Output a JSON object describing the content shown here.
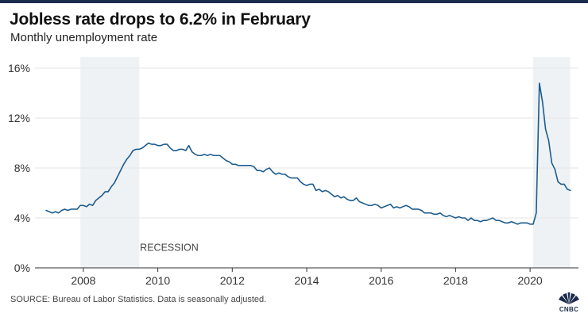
{
  "header": {
    "title": "Jobless rate drops to 6.2% in February",
    "subtitle": "Monthly unemployment rate"
  },
  "footer": {
    "source": "SOURCE: Bureau of Labor Statistics. Data is seasonally adjusted.",
    "logo_text": "CNBC"
  },
  "colors": {
    "line": "#1d5c8e",
    "recession_band": "#eef2f4",
    "grid": "#e6e6e6",
    "axis": "#333333"
  },
  "chart_data": {
    "type": "line",
    "title": "Jobless rate drops to 6.2% in February",
    "subtitle": "Monthly unemployment rate",
    "xlabel": "",
    "ylabel": "",
    "x_ticks": [
      "2008",
      "2010",
      "2012",
      "2014",
      "2016",
      "2018",
      "2020"
    ],
    "y_ticks": [
      "0%",
      "4%",
      "8%",
      "12%",
      "16%"
    ],
    "xlim": [
      2006.7,
      2021.3
    ],
    "ylim": [
      0,
      16
    ],
    "grid": "horizontal",
    "recessions": [
      {
        "start": 2007.92,
        "end": 2009.5,
        "label": "RECESSION"
      },
      {
        "start": 2020.08,
        "end": 2021.08,
        "label": ""
      }
    ],
    "series": [
      {
        "start_year": 2007,
        "start_month": 1,
        "unit": "%",
        "values": [
          4.6,
          4.5,
          4.4,
          4.5,
          4.4,
          4.6,
          4.7,
          4.6,
          4.7,
          4.7,
          4.7,
          5.0,
          5.0,
          4.9,
          5.1,
          5.0,
          5.4,
          5.6,
          5.8,
          6.1,
          6.1,
          6.5,
          6.8,
          7.3,
          7.8,
          8.3,
          8.7,
          9.0,
          9.4,
          9.5,
          9.5,
          9.6,
          9.8,
          10.0,
          9.9,
          9.9,
          9.8,
          9.8,
          9.9,
          9.9,
          9.6,
          9.4,
          9.4,
          9.5,
          9.5,
          9.4,
          9.8,
          9.3,
          9.1,
          9.0,
          9.0,
          9.1,
          9.0,
          9.1,
          9.0,
          9.0,
          9.0,
          8.8,
          8.6,
          8.5,
          8.3,
          8.3,
          8.2,
          8.2,
          8.2,
          8.2,
          8.2,
          8.1,
          7.8,
          7.8,
          7.7,
          7.9,
          8.0,
          7.7,
          7.5,
          7.6,
          7.5,
          7.5,
          7.3,
          7.2,
          7.2,
          7.2,
          6.9,
          6.7,
          6.6,
          6.7,
          6.7,
          6.2,
          6.3,
          6.1,
          6.2,
          6.1,
          5.9,
          5.7,
          5.8,
          5.6,
          5.7,
          5.5,
          5.4,
          5.4,
          5.6,
          5.3,
          5.2,
          5.1,
          5.0,
          5.0,
          5.1,
          5.0,
          4.8,
          4.9,
          5.0,
          5.1,
          4.8,
          4.9,
          4.8,
          4.9,
          5.0,
          4.9,
          4.7,
          4.7,
          4.7,
          4.6,
          4.4,
          4.4,
          4.4,
          4.3,
          4.3,
          4.4,
          4.2,
          4.1,
          4.2,
          4.1,
          4.0,
          4.1,
          4.0,
          4.0,
          3.8,
          4.0,
          3.8,
          3.8,
          3.7,
          3.8,
          3.8,
          3.9,
          4.0,
          3.8,
          3.8,
          3.7,
          3.6,
          3.6,
          3.7,
          3.6,
          3.5,
          3.6,
          3.6,
          3.6,
          3.5,
          3.5,
          4.4,
          14.8,
          13.3,
          11.1,
          10.2,
          8.4,
          7.9,
          6.9,
          6.7,
          6.7,
          6.3,
          6.2
        ]
      }
    ]
  }
}
